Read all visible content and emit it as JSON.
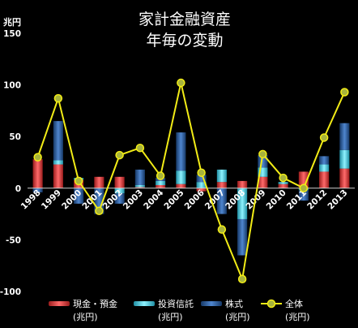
{
  "chart_data": {
    "type": "bar",
    "title": "家計金融資産",
    "subtitle": "年毎の変動",
    "ylabel": "兆円",
    "ylim": [
      -100,
      150
    ],
    "yticks": [
      150,
      100,
      50,
      0,
      -50,
      -100
    ],
    "categories": [
      "1998",
      "1999",
      "2000",
      "2001",
      "2002",
      "2003",
      "2004",
      "2005",
      "2006",
      "2007",
      "2008",
      "2009",
      "2010",
      "2011",
      "2012",
      "2013"
    ],
    "series": [
      {
        "name": "現金・預金",
        "unit": "(兆円)",
        "kind": "bar",
        "color": "#d93b3b",
        "values": [
          28,
          23,
          8,
          11,
          11,
          1,
          3,
          4,
          -3,
          6,
          7,
          11,
          4,
          16,
          16,
          19
        ]
      },
      {
        "name": "投資信託",
        "unit": "(兆円)",
        "kind": "bar",
        "color": "#3fc6d8",
        "values": [
          0,
          4,
          2,
          0,
          -5,
          2,
          4,
          13,
          6,
          12,
          -30,
          9,
          2,
          -2,
          7,
          18
        ]
      },
      {
        "name": "株式",
        "unit": "(兆円)",
        "kind": "bar",
        "color": "#25528f",
        "values": [
          -4,
          38,
          -15,
          -25,
          -10,
          15,
          3,
          37,
          7,
          -25,
          -35,
          12,
          0,
          -10,
          8,
          26
        ]
      },
      {
        "name": "全体",
        "unit": "(兆円)",
        "kind": "line",
        "color": "#f2ec16",
        "values": [
          30,
          87,
          7,
          -22,
          32,
          39,
          12,
          102,
          15,
          -40,
          -88,
          33,
          10,
          0,
          49,
          93
        ]
      }
    ],
    "grid": false,
    "legend_position": "bottom"
  }
}
